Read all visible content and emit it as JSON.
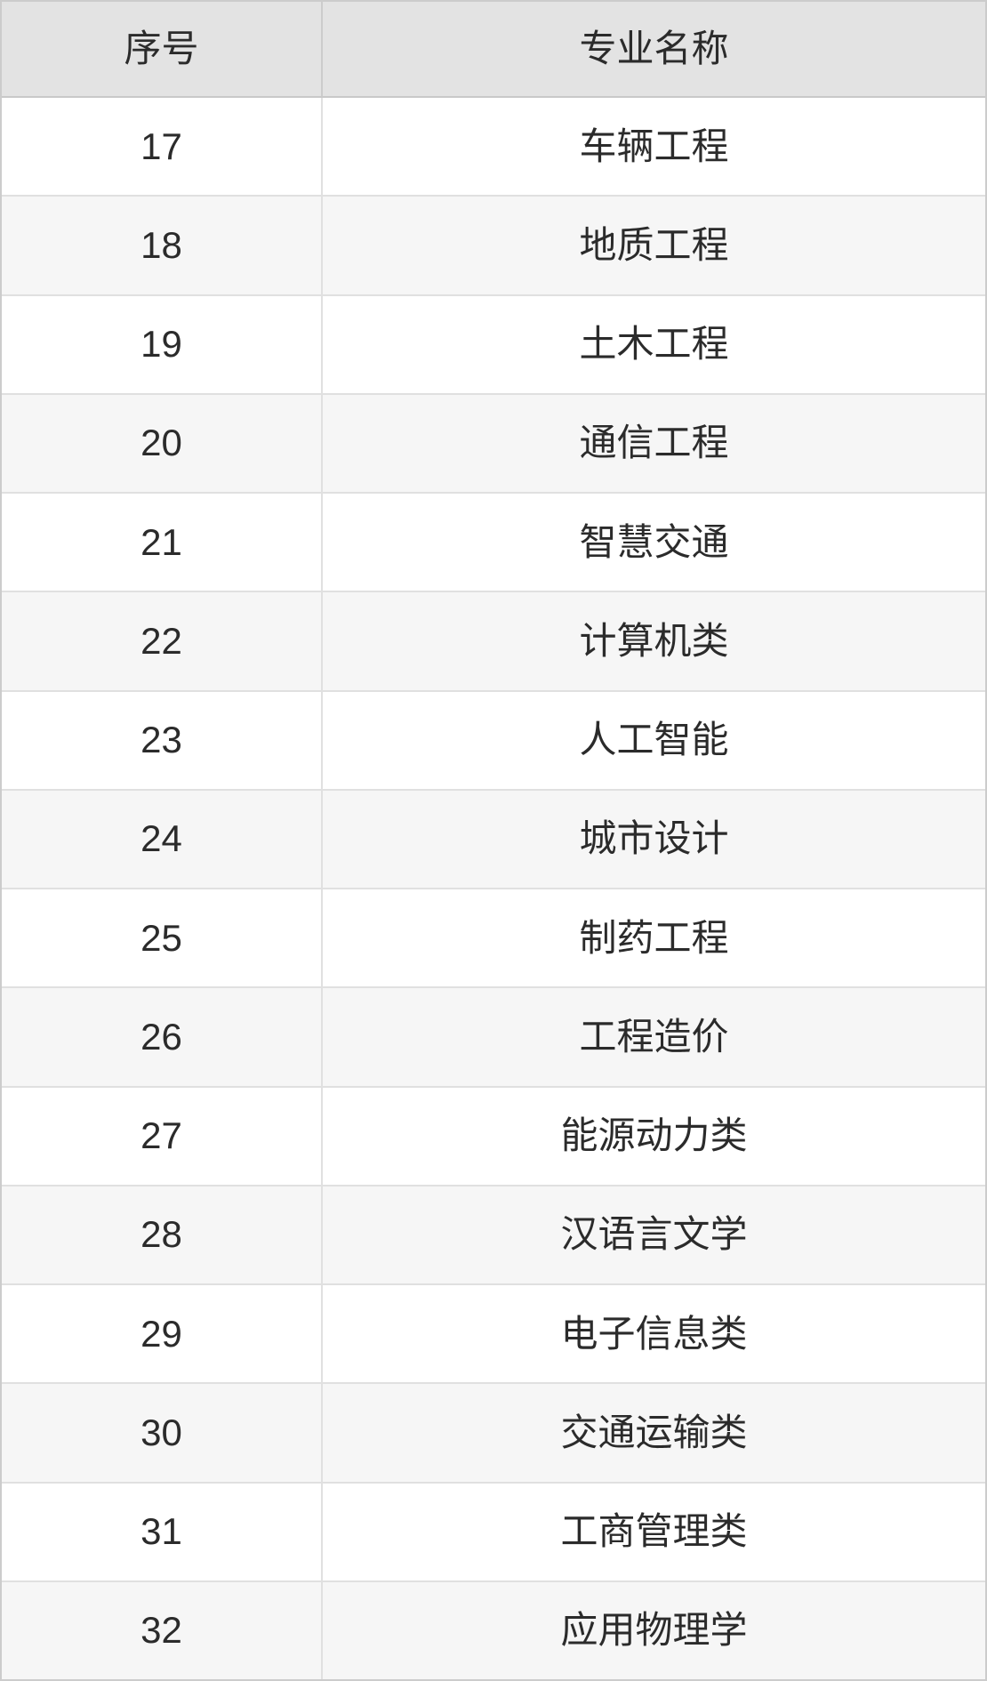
{
  "table": {
    "header": {
      "no": "序号",
      "name": "专业名称"
    },
    "rows": [
      {
        "no": "17",
        "name": "车辆工程"
      },
      {
        "no": "18",
        "name": "地质工程"
      },
      {
        "no": "19",
        "name": "土木工程"
      },
      {
        "no": "20",
        "name": "通信工程"
      },
      {
        "no": "21",
        "name": "智慧交通"
      },
      {
        "no": "22",
        "name": "计算机类"
      },
      {
        "no": "23",
        "name": "人工智能"
      },
      {
        "no": "24",
        "name": "城市设计"
      },
      {
        "no": "25",
        "name": "制药工程"
      },
      {
        "no": "26",
        "name": "工程造价"
      },
      {
        "no": "27",
        "name": "能源动力类"
      },
      {
        "no": "28",
        "name": "汉语言文学"
      },
      {
        "no": "29",
        "name": "电子信息类"
      },
      {
        "no": "30",
        "name": "交通运输类"
      },
      {
        "no": "31",
        "name": "工商管理类"
      },
      {
        "no": "32",
        "name": "应用物理学"
      }
    ]
  },
  "colors": {
    "header_bg": "#e3e3e3",
    "row_bg": "#ffffff",
    "row_alt_bg": "#f6f6f6",
    "outer_border": "#cccccc",
    "row_border": "#e0e0e0",
    "text": "#2b2b2b"
  }
}
